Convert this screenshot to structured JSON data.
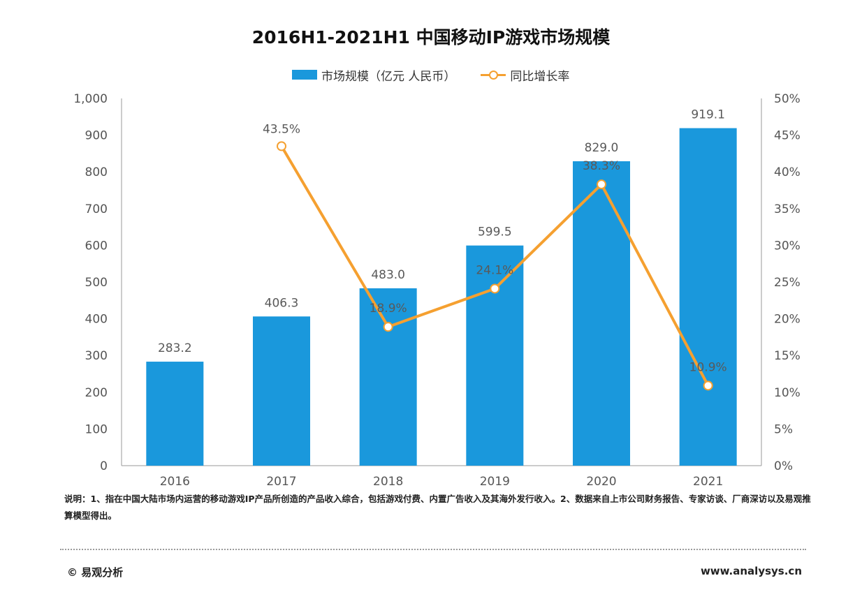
{
  "title": "2016H1-2021H1 中国移动IP游戏市场规模",
  "legend": {
    "bar_label": "市场规模（亿元 人民币）",
    "line_label": "同比增长率"
  },
  "colors": {
    "bar": "#1a98dc",
    "line": "#f5a030",
    "axis": "#9a9a9a"
  },
  "chart_data": {
    "type": "bar",
    "title": "2016H1-2021H1 中国移动IP游戏市场规模",
    "categories": [
      "2016",
      "2017",
      "2018",
      "2019",
      "2020",
      "2021"
    ],
    "series": [
      {
        "name": "市场规模（亿元 人民币）",
        "type": "bar",
        "axis": "left",
        "values": [
          283.2,
          406.3,
          483.0,
          599.5,
          829.0,
          919.1
        ],
        "labels": [
          "283.2",
          "406.3",
          "483.0",
          "599.5",
          "829.0",
          "919.1"
        ]
      },
      {
        "name": "同比增长率",
        "type": "line",
        "axis": "right",
        "values": [
          null,
          43.5,
          18.9,
          24.1,
          38.3,
          10.9
        ],
        "labels": [
          "",
          "43.5%",
          "18.9%",
          "24.1%",
          "38.3%",
          "10.9%"
        ]
      }
    ],
    "y_left": {
      "min": 0,
      "max": 1000,
      "step": 100,
      "ticks": [
        "0",
        "100",
        "200",
        "300",
        "400",
        "500",
        "600",
        "700",
        "800",
        "900",
        "1,000"
      ]
    },
    "y_right": {
      "min": 0,
      "max": 50,
      "step": 5,
      "ticks": [
        "0%",
        "5%",
        "10%",
        "15%",
        "20%",
        "25%",
        "30%",
        "35%",
        "40%",
        "45%",
        "50%"
      ]
    },
    "grid": false,
    "legend_position": "top-center"
  },
  "note": "说明：1、指在中国大陆市场内运营的移动游戏IP产品所创造的产品收入综合，包括游戏付费、内置广告收入及其海外发行收入。2、数据来自上市公司财务报告、专家访谈、厂商深访以及易观推算模型得出。",
  "footer": {
    "copyright": "© 易观分析",
    "website": "www.analysys.cn"
  }
}
